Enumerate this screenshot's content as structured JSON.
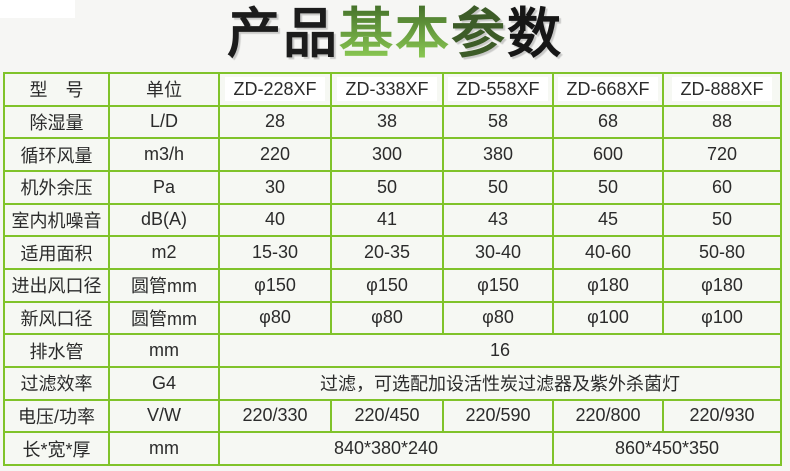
{
  "page": {
    "background_color": "#f6f6f4",
    "table_border_color": "#80c32a",
    "label_text_color": "#7cc22e",
    "value_text_color": "#2b2b2b",
    "cell_background_color": "#f6f8f3",
    "model_chip_background": "#ffffff"
  },
  "title": {
    "text": "产品基本参数",
    "segments": [
      {
        "text": "产品",
        "color": "#1c1c1c"
      },
      {
        "text": "基本",
        "gradient_top": "#44702a",
        "gradient_bottom": "#92d257"
      },
      {
        "text": "参",
        "color": "#3d5c28"
      },
      {
        "text": "数",
        "color": "#161616"
      }
    ]
  },
  "table": {
    "header": {
      "model_label": "型　号",
      "unit_label": "单位",
      "models": [
        "ZD-228XF",
        "ZD-338XF",
        "ZD-558XF",
        "ZD-668XF",
        "ZD-888XF"
      ]
    },
    "rows": [
      {
        "label": "除湿量",
        "unit": "L/D",
        "values": [
          "28",
          "38",
          "58",
          "68",
          "88"
        ]
      },
      {
        "label": "循环风量",
        "unit": "m3/h",
        "values": [
          "220",
          "300",
          "380",
          "600",
          "720"
        ]
      },
      {
        "label": "机外余压",
        "unit": "Pa",
        "values": [
          "30",
          "50",
          "50",
          "50",
          "60"
        ]
      },
      {
        "label": "室内机噪音",
        "unit": "dB(A)",
        "values": [
          "40",
          "41",
          "43",
          "45",
          "50"
        ]
      },
      {
        "label": "适用面积",
        "unit": "m2",
        "values": [
          "15-30",
          "20-35",
          "30-40",
          "40-60",
          "50-80"
        ]
      },
      {
        "label": "进出风口径",
        "unit": "圆管mm",
        "values": [
          "φ150",
          "φ150",
          "φ150",
          "φ180",
          "φ180"
        ]
      },
      {
        "label": "新风口径",
        "unit": "圆管mm",
        "values": [
          "φ80",
          "φ80",
          "φ80",
          "φ100",
          "φ100"
        ]
      },
      {
        "label": "排水管",
        "unit": "mm",
        "values": [
          "16"
        ],
        "spans": [
          5
        ]
      },
      {
        "label": "过滤效率",
        "unit": "G4",
        "values": [
          "过滤，可选配加设活性炭过滤器及紫外杀菌灯"
        ],
        "spans": [
          5
        ]
      },
      {
        "label": "电压/功率",
        "unit": "V/W",
        "values": [
          "220/330",
          "220/450",
          "220/590",
          "220/800",
          "220/930"
        ]
      },
      {
        "label": "长*宽*厚",
        "unit": "mm",
        "values": [
          "840*380*240",
          "860*450*350"
        ],
        "spans": [
          3,
          2
        ]
      }
    ]
  }
}
